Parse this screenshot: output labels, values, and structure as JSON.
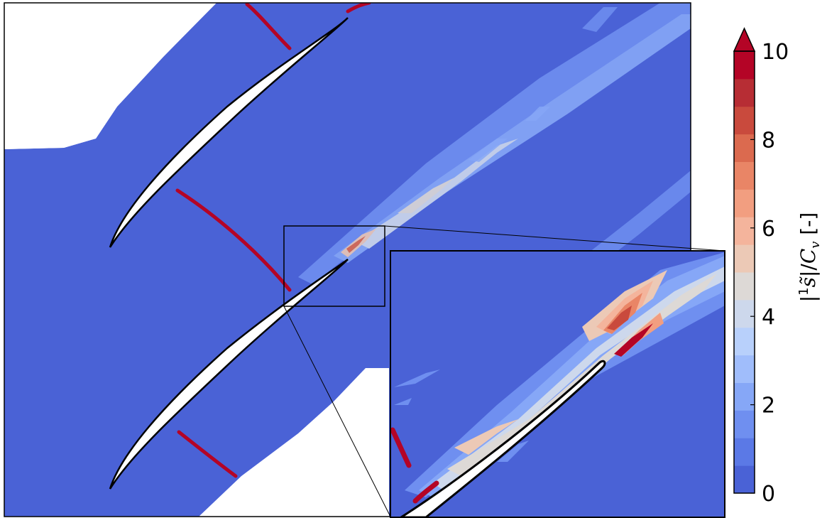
{
  "chart_data": {
    "type": "heatmap",
    "colorbar": {
      "label": "|¹s̃|/C_v [-]",
      "label_parts": [
        "|",
        "1",
        "s̃",
        "|/",
        "C",
        "v",
        " [-]"
      ],
      "min": 0,
      "max": 10,
      "extend": "max",
      "ticks": [
        "0",
        "2",
        "4",
        "6",
        "8",
        "10"
      ],
      "tick_values": [
        0,
        2,
        4,
        6,
        8,
        10
      ],
      "levels": [
        0,
        0.625,
        1.25,
        1.875,
        2.5,
        3.125,
        3.75,
        4.375,
        5,
        5.625,
        6.25,
        6.875,
        7.5,
        8.125,
        8.75,
        9.375,
        10
      ],
      "colors": [
        "#4a62d6",
        "#5b79e6",
        "#6f8ff0",
        "#86a7f7",
        "#a0bdfb",
        "#b8d0fb",
        "#cdd8ec",
        "#ddd9d6",
        "#ecc9b6",
        "#f4b49c",
        "#f29e80",
        "#e98566",
        "#db6a4f",
        "#c94a3d",
        "#b72d34",
        "#b40426"
      ],
      "over_color": "#b40426"
    },
    "main_plot": {
      "background_color": "#4a62d6",
      "features": [
        "blade-1",
        "blade-2",
        "blade-3",
        "shock-1",
        "shock-2",
        "shock-3",
        "wake-upper",
        "wake-lower"
      ]
    },
    "inset": {
      "description_visible": "zoomed view of trailing-edge region",
      "features": [
        "inset-blade",
        "inset-wake",
        "inset-shock"
      ]
    }
  }
}
